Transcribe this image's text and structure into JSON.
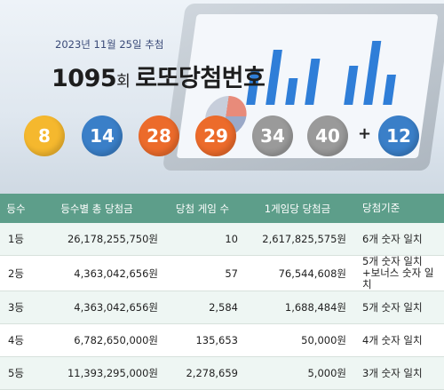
{
  "header": {
    "date": "2023년 11월 25일 추첨",
    "round_number": "1095",
    "round_suffix": "회",
    "title": "로또당첨번호"
  },
  "balls": [
    {
      "value": "8",
      "color": "#f5b82e"
    },
    {
      "value": "14",
      "color": "#3a7fc8"
    },
    {
      "value": "28",
      "color": "#ec6b2b"
    },
    {
      "value": "29",
      "color": "#ec6b2b"
    },
    {
      "value": "34",
      "color": "#9a9a9a"
    },
    {
      "value": "40",
      "color": "#9a9a9a"
    }
  ],
  "plus": "+",
  "bonus": {
    "value": "12",
    "color": "#3a7fc8"
  },
  "table": {
    "headers": [
      "등수",
      "등수별 총 당첨금",
      "당첨 게임 수",
      "1게임당 당첨금",
      "당첨기준"
    ],
    "rows": [
      {
        "rank": "1등",
        "total": "26,178,255,750원",
        "games": "10",
        "per_game": "2,617,825,575원",
        "criteria": [
          "6개 숫자 일치"
        ]
      },
      {
        "rank": "2등",
        "total": "4,363,042,656원",
        "games": "57",
        "per_game": "76,544,608원",
        "criteria": [
          "5개 숫자 일치",
          "+보너스 숫자 일치"
        ]
      },
      {
        "rank": "3등",
        "total": "4,363,042,656원",
        "games": "2,584",
        "per_game": "1,688,484원",
        "criteria": [
          "5개 숫자 일치"
        ]
      },
      {
        "rank": "4등",
        "total": "6,782,650,000원",
        "games": "135,653",
        "per_game": "50,000원",
        "criteria": [
          "4개 숫자 일치"
        ]
      },
      {
        "rank": "5등",
        "total": "11,393,295,000원",
        "games": "2,278,659",
        "per_game": "5,000원",
        "criteria": [
          "3개 숫자 일치"
        ]
      }
    ]
  }
}
